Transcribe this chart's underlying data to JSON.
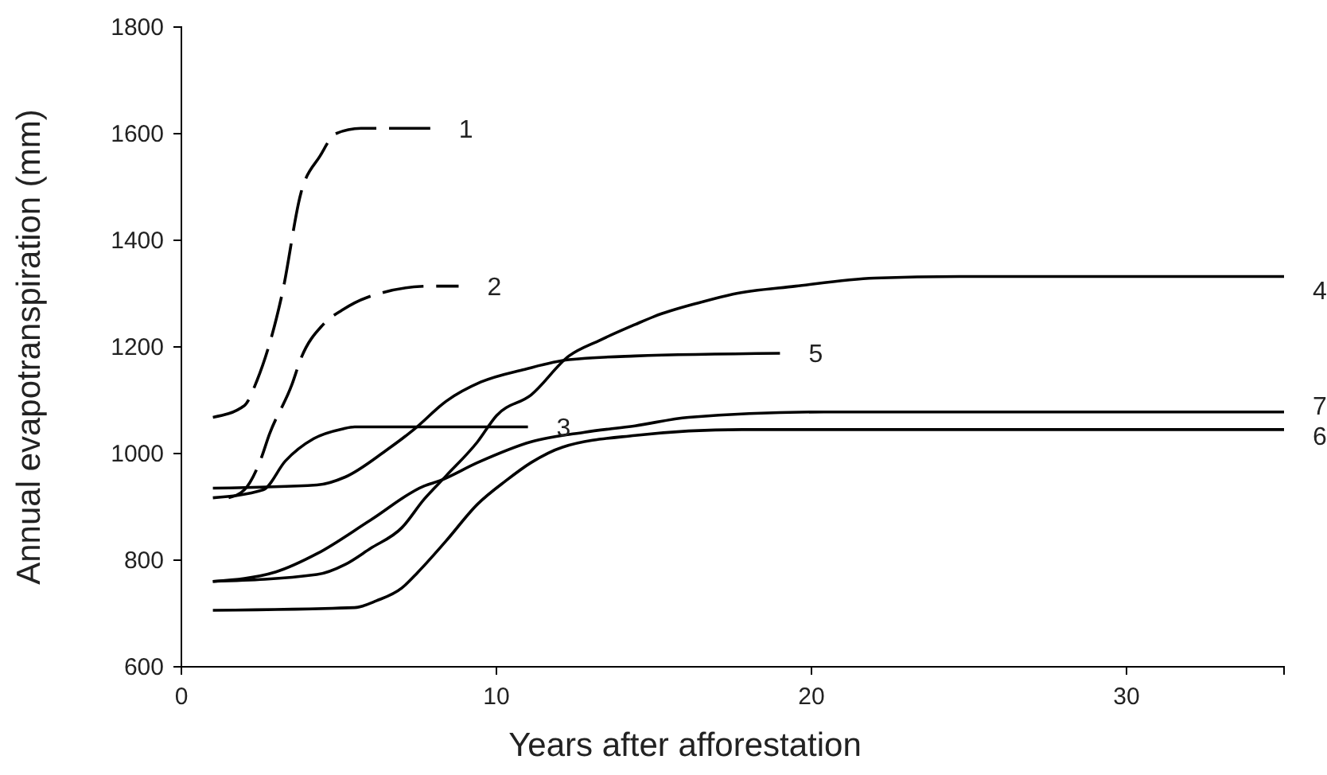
{
  "chart_data": {
    "type": "line",
    "xlabel": "Years after afforestation",
    "ylabel": "Annual evapotranspiration (mm)",
    "xlim": [
      0,
      35
    ],
    "xticks": [
      0,
      10,
      20,
      30
    ],
    "ylim": [
      600,
      1800
    ],
    "yticks": [
      600,
      800,
      1000,
      1200,
      1400,
      1600,
      1800
    ],
    "grid": false,
    "marker": "none",
    "series": [
      {
        "color": "#000000",
        "line_style": "dashed",
        "x": [
          1,
          2,
          2.4,
          3.2,
          3.8,
          4.4,
          4.9,
          5.7,
          7,
          7.9
        ],
        "values": [
          1068,
          1090,
          1137,
          1300,
          1490,
          1558,
          1600,
          1610,
          1610,
          1610
        ]
      },
      {
        "color": "#000000",
        "line_style": "dashed",
        "x": [
          1.5,
          2,
          2.5,
          2.8,
          3.5,
          3.8,
          4.5,
          5.1,
          5.9,
          7.9,
          8.8
        ],
        "values": [
          917,
          932,
          986,
          1037,
          1128,
          1179,
          1242,
          1269,
          1293,
          1314,
          1314
        ]
      },
      {
        "color": "#000000",
        "line_style": "solid",
        "x": [
          1,
          2.6,
          3.3,
          4.2,
          5.1,
          5.5,
          11
        ],
        "values": [
          917,
          932,
          986,
          1028,
          1046,
          1050,
          1050
        ]
      },
      {
        "color": "#000000",
        "line_style": "solid",
        "x": [
          1,
          4.3,
          5.2,
          6,
          7,
          7.7,
          8.4,
          9.4,
          10,
          11.1,
          12.3,
          13.3,
          14.4,
          15,
          16.5,
          17.5,
          19.5,
          22,
          24.7,
          35
        ],
        "values": [
          760,
          773,
          792,
          822,
          861,
          914,
          958,
          1022,
          1071,
          1110,
          1183,
          1213,
          1242,
          1257,
          1284,
          1299,
          1314,
          1329,
          1332,
          1332
        ]
      },
      {
        "color": "#000000",
        "line_style": "solid",
        "x": [
          1,
          4.3,
          5.2,
          6.5,
          7.4,
          8.4,
          9.5,
          10.9,
          12.3,
          14.4,
          19
        ],
        "values": [
          935,
          941,
          956,
          1006,
          1046,
          1098,
          1134,
          1158,
          1176,
          1183,
          1188
        ]
      },
      {
        "color": "#000000",
        "line_style": "solid",
        "x": [
          1,
          5.5,
          6.2,
          7,
          7.5,
          8.4,
          9.4,
          10.3,
          11.1,
          12.1,
          14.4,
          17.8,
          35
        ],
        "values": [
          706,
          711,
          724,
          748,
          777,
          836,
          905,
          949,
          983,
          1012,
          1034,
          1045,
          1045
        ]
      },
      {
        "color": "#000000",
        "line_style": "solid",
        "x": [
          1,
          3,
          4.3,
          6,
          7.7,
          8.2,
          9.4,
          11.1,
          12.8,
          14.4,
          16.1,
          20.4,
          35
        ],
        "values": [
          760,
          778,
          812,
          875,
          939,
          949,
          983,
          1022,
          1040,
          1052,
          1068,
          1078,
          1078
        ]
      }
    ],
    "annotations": [
      {
        "text": "1",
        "x": 7.9,
        "y": 1610
      },
      {
        "text": "2",
        "x": 8.8,
        "y": 1314
      },
      {
        "text": "3",
        "x": 11,
        "y": 1050
      },
      {
        "text": "4",
        "x": 35,
        "y": 1332
      },
      {
        "text": "5",
        "x": 19,
        "y": 1188
      },
      {
        "text": "6",
        "x": 35,
        "y": 1045
      },
      {
        "text": "7",
        "x": 35,
        "y": 1078
      }
    ]
  }
}
